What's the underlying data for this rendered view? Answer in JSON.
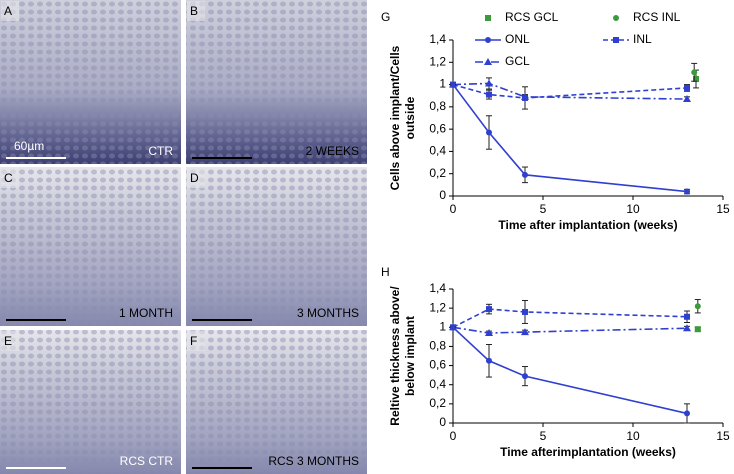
{
  "panels": [
    {
      "letter": "A",
      "caption": "CTR",
      "scale": "60µm"
    },
    {
      "letter": "B",
      "caption": "2 WEEKS"
    },
    {
      "letter": "C",
      "caption": "1 MONTH"
    },
    {
      "letter": "D",
      "caption": "3 MONTHS"
    },
    {
      "letter": "E",
      "caption": "RCS CTR"
    },
    {
      "letter": "F",
      "caption": "RCS 3 MONTHS"
    }
  ],
  "chart_data": [
    {
      "type": "line",
      "panel_label": "G",
      "ylabel": [
        "Cells above implant/Cells",
        "outside"
      ],
      "xlabel": "Time after implantation (weeks)",
      "xlim": [
        0,
        15
      ],
      "xticks": [
        0,
        5,
        10,
        15
      ],
      "ylim": [
        0,
        1.4
      ],
      "yticks": [
        0,
        {
          "value": 0.2,
          "label": "0,2"
        },
        {
          "value": 0.4,
          "label": "0,4"
        },
        {
          "value": 0.6,
          "label": "0,6"
        },
        {
          "value": 0.8,
          "label": "0,8"
        },
        1,
        {
          "value": 1.2,
          "label": "1,2"
        },
        {
          "value": 1.4,
          "label": "1,4"
        }
      ],
      "legend": true,
      "series": [
        {
          "name": "RCS GCL",
          "color": "#3c9a3c",
          "marker": "square",
          "dash": "none",
          "x": [
            13.5
          ],
          "values": [
            1.05
          ],
          "errors": [
            0.08
          ]
        },
        {
          "name": "RCS INL",
          "color": "#3c9a3c",
          "marker": "circle",
          "dash": "none",
          "x": [
            13.4
          ],
          "values": [
            1.11
          ],
          "errors": [
            0.08
          ]
        },
        {
          "name": "ONL",
          "color": "#2f3fcf",
          "marker": "circle",
          "dash": "solid",
          "x": [
            0,
            2,
            4,
            13
          ],
          "values": [
            1,
            0.57,
            0.19,
            0.04
          ],
          "errors": [
            0,
            0.15,
            0.07,
            0.02
          ]
        },
        {
          "name": "INL",
          "color": "#2f3fcf",
          "marker": "square",
          "dash": "dashed",
          "x": [
            0,
            2,
            4,
            13
          ],
          "values": [
            1,
            0.91,
            0.88,
            0.97
          ],
          "errors": [
            0,
            0.04,
            0.1,
            0.03
          ]
        },
        {
          "name": "GCL",
          "color": "#2f3fcf",
          "marker": "triangle",
          "dash": "dashdot",
          "x": [
            0,
            2,
            4,
            13
          ],
          "values": [
            1,
            1.01,
            0.89,
            0.87
          ],
          "errors": [
            0,
            0.05,
            0.02,
            0.02
          ]
        }
      ]
    },
    {
      "type": "line",
      "panel_label": "H",
      "ylabel": [
        "Reltive thickness above/",
        "below implant"
      ],
      "xlabel": "Time afterimplantation (weeks)",
      "xlim": [
        0,
        15
      ],
      "xticks": [
        0,
        5,
        10,
        15
      ],
      "ylim": [
        0,
        1.4
      ],
      "yticks": [
        0,
        {
          "value": 0.2,
          "label": "0,2"
        },
        {
          "value": 0.4,
          "label": "0,4"
        },
        {
          "value": 0.6,
          "label": "0,6"
        },
        {
          "value": 0.8,
          "label": "0,8"
        },
        1,
        {
          "value": 1.2,
          "label": "1,2"
        },
        {
          "value": 1.4,
          "label": "1,4"
        }
      ],
      "legend": false,
      "series": [
        {
          "color": "#3c9a3c",
          "marker": "square",
          "dash": "none",
          "x": [
            13.6
          ],
          "values": [
            0.98
          ],
          "errors": [
            0.02
          ]
        },
        {
          "color": "#3c9a3c",
          "marker": "circle",
          "dash": "none",
          "x": [
            13.6
          ],
          "values": [
            1.22
          ],
          "errors": [
            0.07
          ]
        },
        {
          "color": "#2f3fcf",
          "marker": "circle",
          "dash": "solid",
          "x": [
            0,
            2,
            4,
            13
          ],
          "values": [
            1,
            0.65,
            0.49,
            0.1
          ],
          "errors": [
            0,
            0.17,
            0.1,
            0.1
          ]
        },
        {
          "color": "#2f3fcf",
          "marker": "square",
          "dash": "dashed",
          "x": [
            0,
            2,
            4,
            13
          ],
          "values": [
            1,
            1.19,
            1.16,
            1.11
          ],
          "errors": [
            0,
            0.05,
            0.12,
            0.06
          ]
        },
        {
          "color": "#2f3fcf",
          "marker": "triangle",
          "dash": "dashdot",
          "x": [
            0,
            2,
            4,
            13
          ],
          "values": [
            1,
            0.94,
            0.95,
            0.99
          ],
          "errors": [
            0,
            0.02,
            0.02,
            0.02
          ]
        }
      ]
    }
  ]
}
